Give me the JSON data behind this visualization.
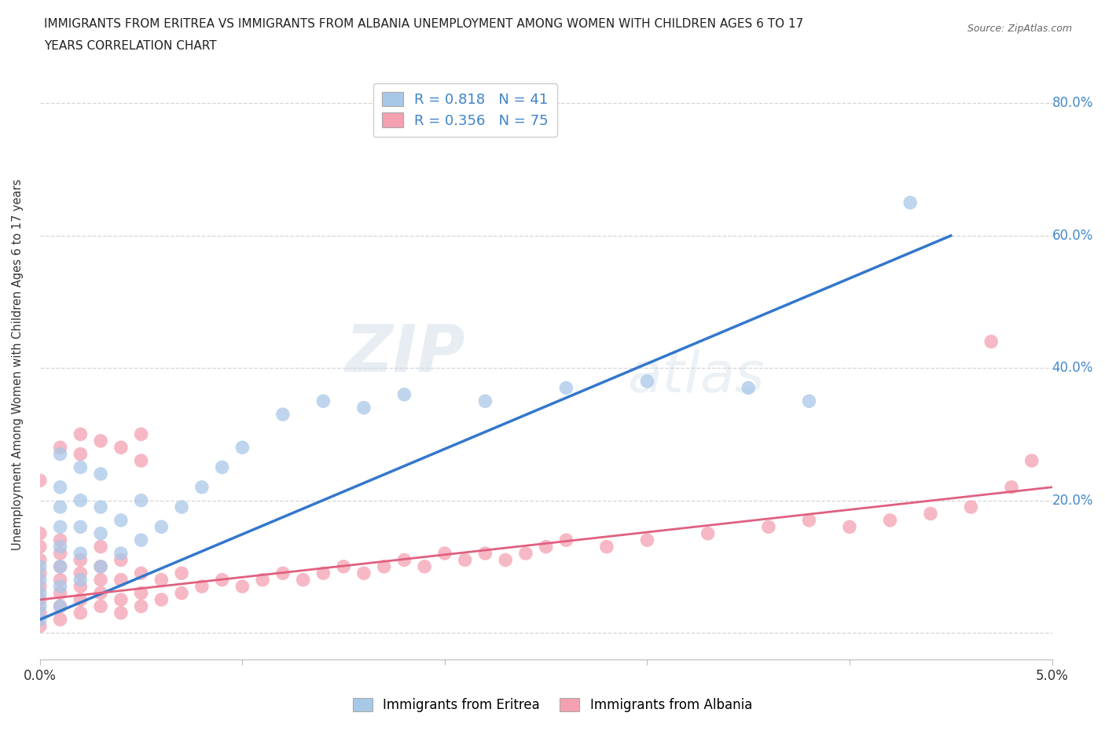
{
  "title_line1": "IMMIGRANTS FROM ERITREA VS IMMIGRANTS FROM ALBANIA UNEMPLOYMENT AMONG WOMEN WITH CHILDREN AGES 6 TO 17",
  "title_line2": "YEARS CORRELATION CHART",
  "source": "Source: ZipAtlas.com",
  "ylabel": "Unemployment Among Women with Children Ages 6 to 17 years",
  "xlim": [
    0.0,
    0.05
  ],
  "ylim": [
    -0.04,
    0.85
  ],
  "eritrea_color": "#a8c8e8",
  "albania_color": "#f4a0b0",
  "eritrea_line_color": "#3377cc",
  "albania_line_color": "#e06080",
  "eritrea_R": 0.818,
  "eritrea_N": 41,
  "albania_R": 0.356,
  "albania_N": 75,
  "legend_label_eritrea": "Immigrants from Eritrea",
  "legend_label_albania": "Immigrants from Albania",
  "watermark_zip": "ZIP",
  "watermark_atlas": "atlas",
  "background_color": "#ffffff",
  "grid_color": "#cccccc",
  "tick_color": "#4488cc",
  "ytick_right_labels": [
    "80.0%",
    "60.0%",
    "40.0%",
    "20.0%"
  ],
  "ytick_right_positions": [
    0.8,
    0.6,
    0.4,
    0.2
  ],
  "eritrea_scatter_x": [
    0.0,
    0.0,
    0.0,
    0.0,
    0.0,
    0.001,
    0.001,
    0.001,
    0.001,
    0.001,
    0.001,
    0.001,
    0.001,
    0.002,
    0.002,
    0.002,
    0.002,
    0.002,
    0.003,
    0.003,
    0.003,
    0.003,
    0.004,
    0.004,
    0.005,
    0.005,
    0.006,
    0.007,
    0.008,
    0.009,
    0.01,
    0.012,
    0.014,
    0.016,
    0.018,
    0.022,
    0.026,
    0.03,
    0.035,
    0.038,
    0.043
  ],
  "eritrea_scatter_y": [
    0.02,
    0.04,
    0.06,
    0.08,
    0.1,
    0.04,
    0.07,
    0.1,
    0.13,
    0.16,
    0.19,
    0.22,
    0.27,
    0.08,
    0.12,
    0.16,
    0.2,
    0.25,
    0.1,
    0.15,
    0.19,
    0.24,
    0.12,
    0.17,
    0.14,
    0.2,
    0.16,
    0.19,
    0.22,
    0.25,
    0.28,
    0.33,
    0.35,
    0.34,
    0.36,
    0.35,
    0.37,
    0.38,
    0.37,
    0.35,
    0.65
  ],
  "albania_scatter_x": [
    0.0,
    0.0,
    0.0,
    0.0,
    0.0,
    0.0,
    0.0,
    0.0,
    0.001,
    0.001,
    0.001,
    0.001,
    0.001,
    0.001,
    0.001,
    0.002,
    0.002,
    0.002,
    0.002,
    0.002,
    0.002,
    0.003,
    0.003,
    0.003,
    0.003,
    0.003,
    0.004,
    0.004,
    0.004,
    0.004,
    0.005,
    0.005,
    0.005,
    0.005,
    0.006,
    0.006,
    0.007,
    0.007,
    0.008,
    0.009,
    0.01,
    0.011,
    0.012,
    0.013,
    0.014,
    0.015,
    0.016,
    0.017,
    0.018,
    0.019,
    0.02,
    0.021,
    0.022,
    0.023,
    0.024,
    0.025,
    0.026,
    0.028,
    0.03,
    0.033,
    0.036,
    0.038,
    0.04,
    0.042,
    0.044,
    0.046,
    0.048,
    0.0,
    0.001,
    0.002,
    0.003,
    0.004,
    0.005,
    0.047,
    0.049
  ],
  "albania_scatter_y": [
    0.01,
    0.03,
    0.05,
    0.07,
    0.09,
    0.11,
    0.13,
    0.15,
    0.02,
    0.04,
    0.06,
    0.08,
    0.1,
    0.12,
    0.14,
    0.03,
    0.05,
    0.07,
    0.09,
    0.11,
    0.27,
    0.04,
    0.06,
    0.08,
    0.1,
    0.13,
    0.03,
    0.05,
    0.08,
    0.11,
    0.04,
    0.06,
    0.09,
    0.26,
    0.05,
    0.08,
    0.06,
    0.09,
    0.07,
    0.08,
    0.07,
    0.08,
    0.09,
    0.08,
    0.09,
    0.1,
    0.09,
    0.1,
    0.11,
    0.1,
    0.12,
    0.11,
    0.12,
    0.11,
    0.12,
    0.13,
    0.14,
    0.13,
    0.14,
    0.15,
    0.16,
    0.17,
    0.16,
    0.17,
    0.18,
    0.19,
    0.22,
    0.23,
    0.28,
    0.3,
    0.29,
    0.28,
    0.3,
    0.44,
    0.26
  ]
}
